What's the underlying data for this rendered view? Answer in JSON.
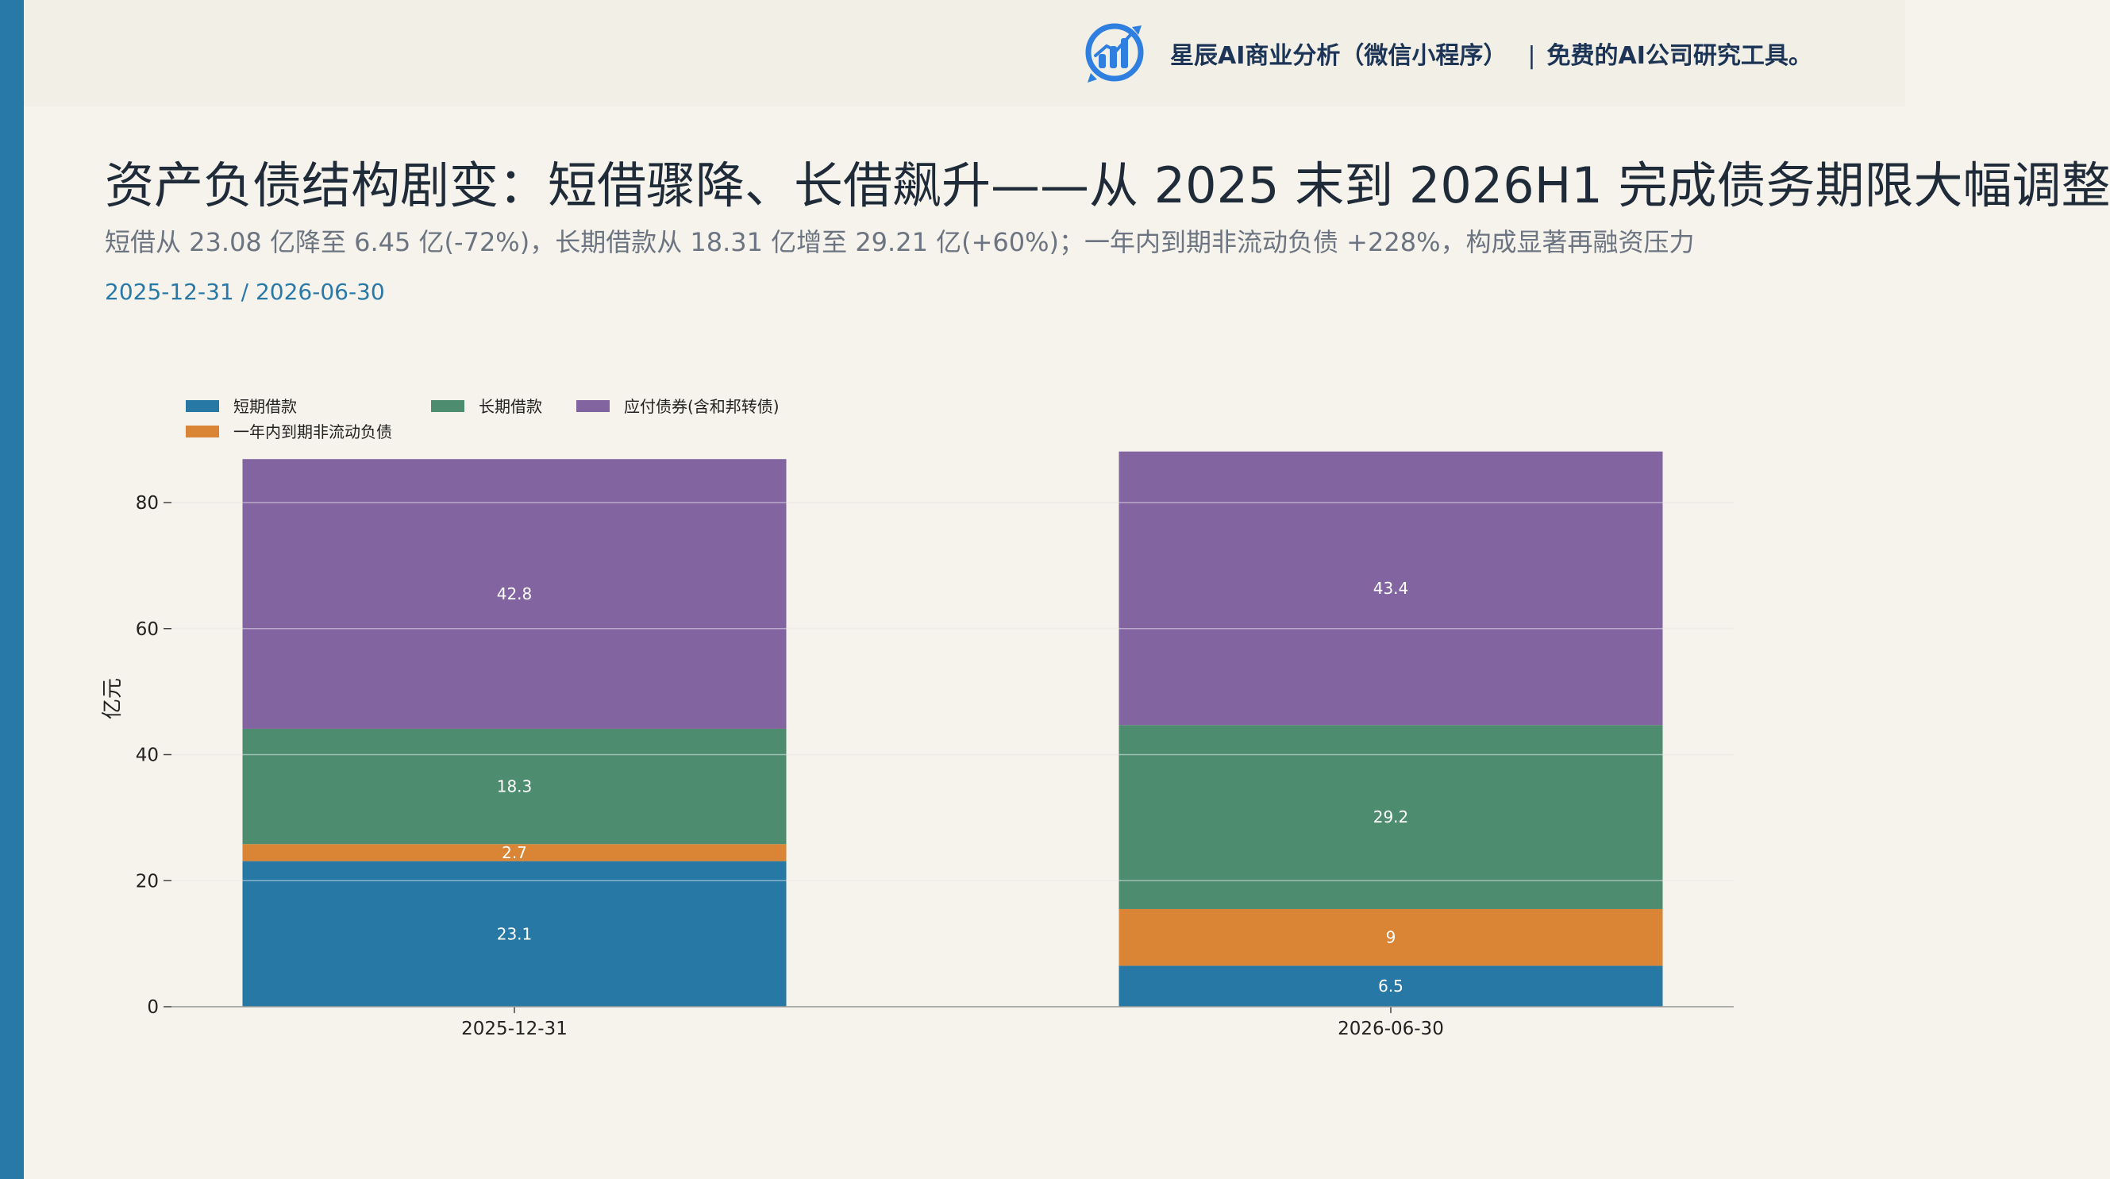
{
  "brand": {
    "name": "星辰AI商业分析（微信小程序）",
    "separator": "|",
    "tagline": "免费的AI公司研究工具。"
  },
  "title": "资产负债结构剧变：短借骤降、长借飙升——从 2025 末到 2026H1 完成债务期限大幅调整",
  "subtitle": "短借从 23.08 亿降至 6.45 亿(-72%)，长期借款从 18.31 亿增至 29.21 亿(+60%)；一年内到期非流动负债 +228%，构成显著再融资压力",
  "date_range": "2025-12-31 / 2026-06-30",
  "colors": {
    "accent": "#2979a8",
    "background": "#f6f3ec",
    "short_loan": "#2878a5",
    "current_noncurrent": "#da8436",
    "long_loan": "#4e8c70",
    "bonds": "#8264a0"
  },
  "chart_data": {
    "type": "bar",
    "stacked": true,
    "categories": [
      "2025-12-31",
      "2026-06-30"
    ],
    "series": [
      {
        "name": "短期借款",
        "values": [
          23.1,
          6.5
        ],
        "color": "#2878a5"
      },
      {
        "name": "一年内到期非流动负债",
        "values": [
          2.7,
          9
        ],
        "color": "#da8436"
      },
      {
        "name": "长期借款",
        "values": [
          18.3,
          29.2
        ],
        "color": "#4e8c70"
      },
      {
        "name": "应付债券(含和邦转债)",
        "values": [
          42.8,
          43.4
        ],
        "color": "#8264a0"
      }
    ],
    "legend_order": [
      "短期借款",
      "长期借款",
      "应付债券(含和邦转债)",
      "一年内到期非流动负债"
    ],
    "ylabel": "亿元",
    "xlabel": "",
    "ylim": [
      0,
      88
    ],
    "yticks": [
      0,
      20,
      40,
      60,
      80
    ],
    "grid": true,
    "legend_position": "top-left"
  }
}
